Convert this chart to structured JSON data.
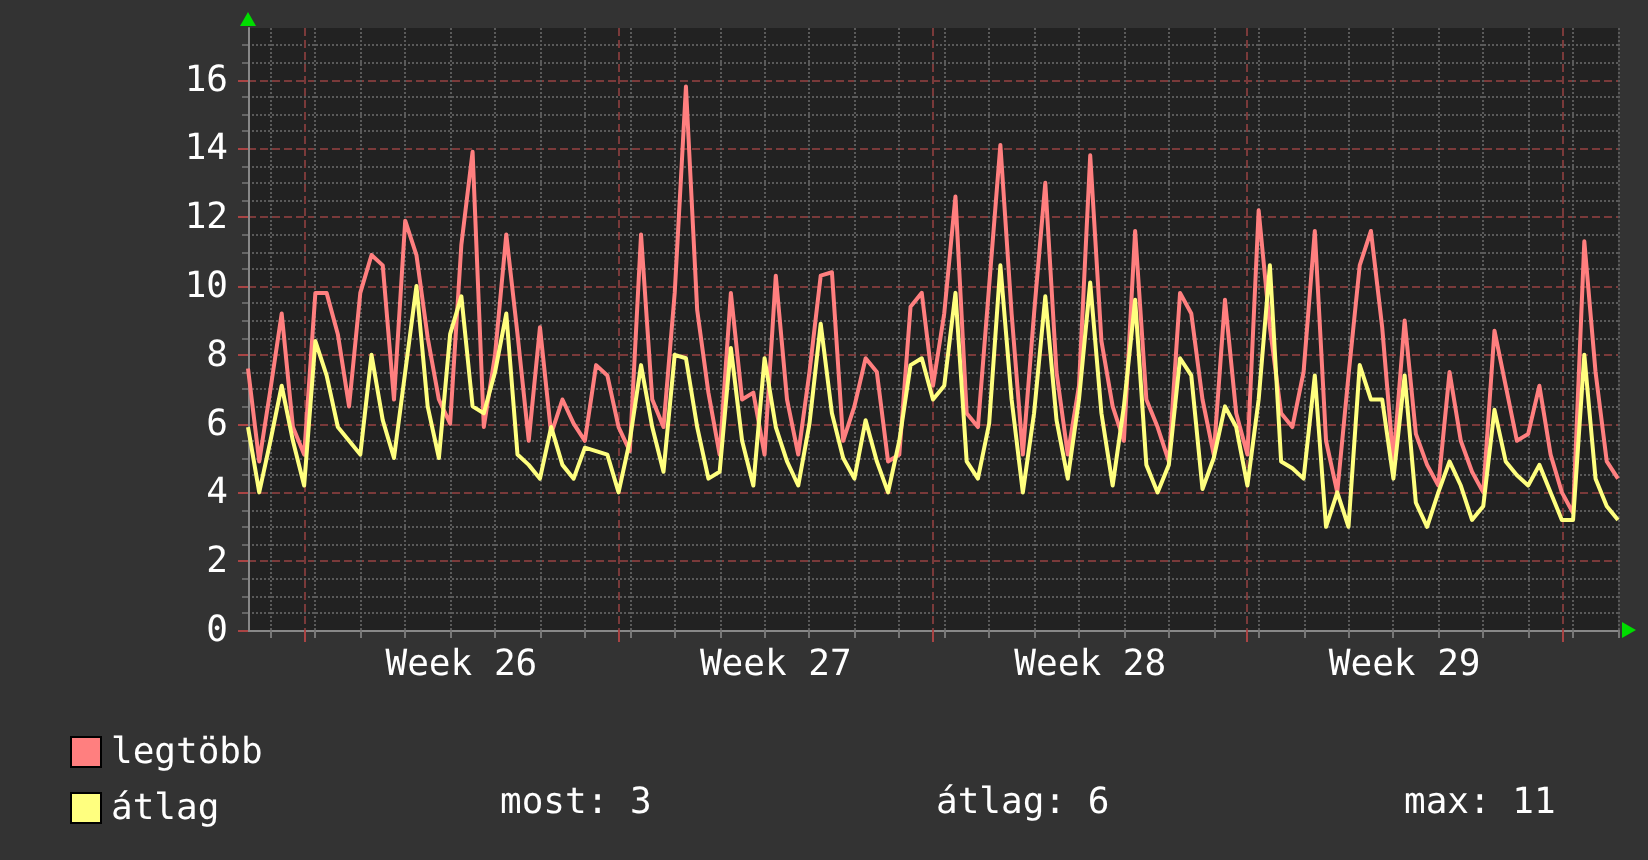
{
  "chart_data": {
    "type": "line",
    "legend": "bottom left",
    "grid": true,
    "marker": "none",
    "line_style": "solid",
    "ylim": [
      0,
      17.5
    ],
    "yticks": [
      0,
      2,
      4,
      6,
      8,
      10,
      12,
      14,
      16
    ],
    "categories": [
      null,
      null,
      null,
      null,
      null,
      null,
      null,
      null,
      null,
      null,
      null,
      null,
      null,
      null,
      null,
      null,
      null,
      null,
      null,
      "Week 26",
      null,
      null,
      null,
      null,
      null,
      null,
      null,
      null,
      null,
      null,
      null,
      null,
      null,
      null,
      null,
      null,
      null,
      null,
      null,
      null,
      null,
      null,
      null,
      null,
      null,
      null,
      null,
      "Week 27",
      null,
      null,
      null,
      null,
      null,
      null,
      null,
      null,
      null,
      null,
      null,
      null,
      null,
      null,
      null,
      null,
      null,
      null,
      null,
      null,
      null,
      null,
      null,
      null,
      null,
      null,
      null,
      "Week 28",
      null,
      null,
      null,
      null,
      null,
      null,
      null,
      null,
      null,
      null,
      null,
      null,
      null,
      null,
      null,
      null,
      null,
      null,
      null,
      null,
      null,
      null,
      null,
      null,
      null,
      null,
      null,
      "Week 29",
      null,
      null,
      null,
      null,
      null,
      null,
      null,
      null,
      null,
      null,
      null,
      null,
      null,
      null,
      null,
      null,
      null,
      null,
      null
    ],
    "annotations": [
      "most: 3",
      "átlag: 6",
      "max: 11"
    ],
    "series": [
      {
        "name": "legtöbb",
        "color": "#ff7f7f",
        "values": [
          7.6,
          4.9,
          7.0,
          9.2,
          5.9,
          5.1,
          9.8,
          9.8,
          8.6,
          6.5,
          9.8,
          10.9,
          10.6,
          6.7,
          11.9,
          10.9,
          8.5,
          6.7,
          6.0,
          11.2,
          13.9,
          5.9,
          8.0,
          11.5,
          8.6,
          5.5,
          8.8,
          5.7,
          6.7,
          6.0,
          5.5,
          7.7,
          7.4,
          5.9,
          5.2,
          11.5,
          6.7,
          5.9,
          9.8,
          15.8,
          9.3,
          6.9,
          5.1,
          9.8,
          6.7,
          6.9,
          5.1,
          10.3,
          6.7,
          5.1,
          7.5,
          10.3,
          10.4,
          5.5,
          6.5,
          7.9,
          7.5,
          4.9,
          5.1,
          9.4,
          9.8,
          7.1,
          9.2,
          12.6,
          6.3,
          5.9,
          10.0,
          14.1,
          9.2,
          5.1,
          9.2,
          13.0,
          7.5,
          5.1,
          7.1,
          13.8,
          8.4,
          6.5,
          5.5,
          11.6,
          6.7,
          5.9,
          4.9,
          9.8,
          9.2,
          6.7,
          5.1,
          9.6,
          6.3,
          5.1,
          12.2,
          8.8,
          6.3,
          5.9,
          7.5,
          11.6,
          5.5,
          4.0,
          7.4,
          10.6,
          11.6,
          8.8,
          4.9,
          9.0,
          5.7,
          4.8,
          4.2,
          7.5,
          5.5,
          4.6,
          4.0,
          8.7,
          7.1,
          5.5,
          5.7,
          7.1,
          5.1,
          4.0,
          3.4,
          11.3,
          7.5,
          4.9,
          4.4
        ]
      },
      {
        "name": "átlag",
        "color": "#ffff7f",
        "values": [
          5.9,
          4.0,
          5.5,
          7.1,
          5.5,
          4.2,
          8.4,
          7.4,
          5.9,
          5.5,
          5.1,
          8.0,
          6.1,
          5.0,
          7.5,
          10.0,
          6.5,
          5.0,
          8.6,
          9.7,
          6.5,
          6.3,
          7.5,
          9.2,
          5.1,
          4.8,
          4.4,
          5.9,
          4.8,
          4.4,
          5.3,
          5.2,
          5.1,
          4.0,
          5.5,
          7.7,
          5.9,
          4.6,
          8.0,
          7.9,
          5.9,
          4.4,
          4.6,
          8.2,
          5.5,
          4.2,
          7.9,
          5.9,
          4.9,
          4.2,
          6.0,
          8.9,
          6.3,
          5.0,
          4.4,
          6.1,
          4.9,
          4.0,
          5.5,
          7.7,
          7.9,
          6.7,
          7.1,
          9.8,
          4.9,
          4.4,
          6.0,
          10.6,
          6.7,
          4.0,
          6.3,
          9.7,
          6.1,
          4.4,
          6.7,
          10.1,
          6.3,
          4.2,
          6.5,
          9.6,
          4.8,
          4.0,
          4.8,
          7.9,
          7.4,
          4.1,
          5.0,
          6.5,
          5.9,
          4.2,
          6.7,
          10.6,
          4.9,
          4.7,
          4.4,
          7.4,
          3.0,
          4.0,
          3.0,
          7.7,
          6.7,
          6.7,
          4.4,
          7.4,
          3.7,
          3.0,
          4.0,
          4.9,
          4.2,
          3.2,
          3.6,
          6.4,
          4.9,
          4.5,
          4.2,
          4.8,
          4.0,
          3.2,
          3.2,
          8.0,
          4.4,
          3.6,
          3.2
        ]
      }
    ]
  }
}
